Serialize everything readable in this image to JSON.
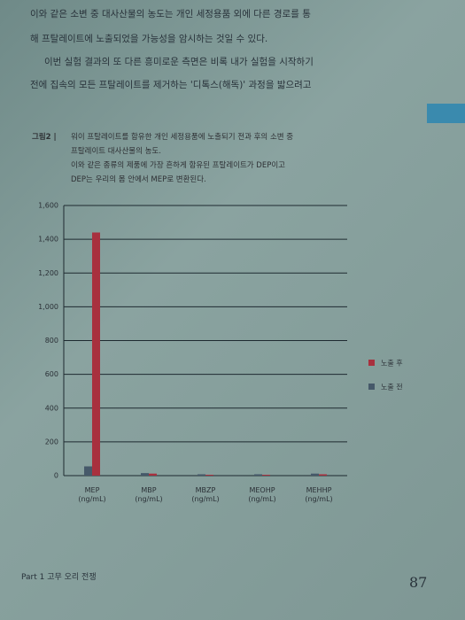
{
  "page": {
    "body_lines": [
      "이와 같은 소변 중 대사산물의 농도는 개인 세정용품 외에 다른 경로를 통",
      "해 프탈레이트에 노출되었을 가능성을 암시하는 것일 수 있다.",
      "이번 실험 결과의 또 다른 흥미로운 측면은 비록 내가 실험을 시작하기",
      "전에 집속의 모든 프탈레이트를 제거하는 '디톡스(해독)' 과정을 밟으려고"
    ],
    "caption_label": "그림2 |",
    "caption_lines": [
      "워이 프탈레이트를 함유한 개인 세정용품에 노출되기 전과 후의 소변 중",
      "프탈레이트 대사산물의 농도.",
      "이와 같은 종류의 제품에 가장 흔하게 함유된 프탈레이트가 DEP이고",
      "DEP는 우리의 몸 안에서 MEP로 변환된다."
    ],
    "footer": "Part 1 고무 오리 전쟁",
    "page_number": "87"
  },
  "chart_data": {
    "type": "bar",
    "categories": [
      "MEP (ng/mL)",
      "MBP (ng/mL)",
      "MBZP (ng/mL)",
      "MEOHP (ng/mL)",
      "MEHHP (ng/mL)"
    ],
    "series": [
      {
        "name": "노출 후",
        "color": "#a8303e",
        "values": [
          1440,
          12,
          5,
          5,
          8
        ]
      },
      {
        "name": "노출 전",
        "color": "#46596a",
        "values": [
          55,
          15,
          8,
          8,
          12
        ]
      }
    ],
    "ylim": [
      0,
      1600
    ],
    "yticks": [
      0,
      200,
      400,
      600,
      800,
      {
        "value": 1000,
        "label": "1,000"
      },
      {
        "value": 1200,
        "label": "1,200"
      },
      {
        "value": 1400,
        "label": "1,400"
      },
      {
        "value": 1600,
        "label": "1,600"
      }
    ],
    "grid": true,
    "legend": "right"
  }
}
